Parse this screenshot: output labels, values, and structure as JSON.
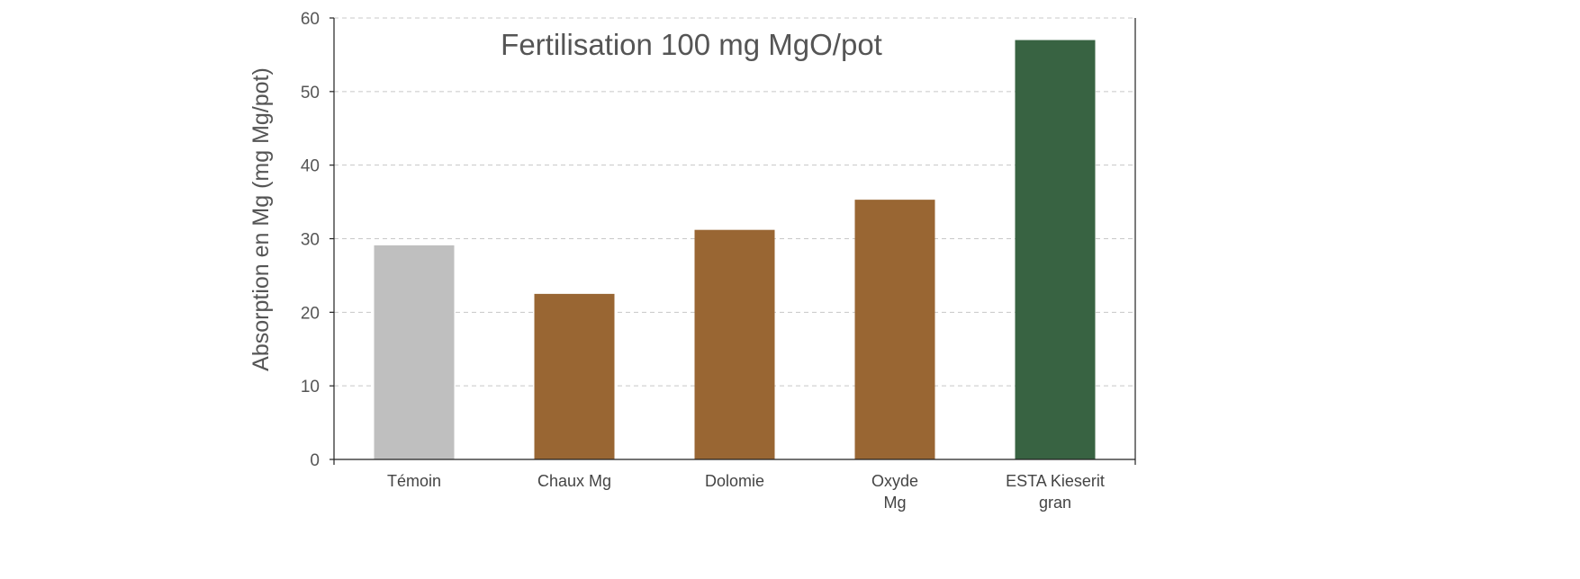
{
  "chart_data": {
    "type": "bar",
    "title": "Fertilisation 100 mg MgO/pot",
    "xlabel": "",
    "ylabel": "Absorption en Mg (mg Mg/pot)",
    "ylim": [
      0,
      60
    ],
    "yticks": [
      0,
      10,
      20,
      30,
      40,
      50,
      60
    ],
    "grid": true,
    "categories": [
      [
        "Témoin"
      ],
      [
        "Chaux Mg"
      ],
      [
        "Dolomie"
      ],
      [
        "Oxyde",
        "Mg"
      ],
      [
        "ESTA Kieserit",
        "gran"
      ]
    ],
    "values": [
      29.1,
      22.5,
      31.2,
      35.3,
      57.0
    ],
    "colors": [
      "#bfbfbf",
      "#996633",
      "#996633",
      "#996633",
      "#386342"
    ]
  }
}
